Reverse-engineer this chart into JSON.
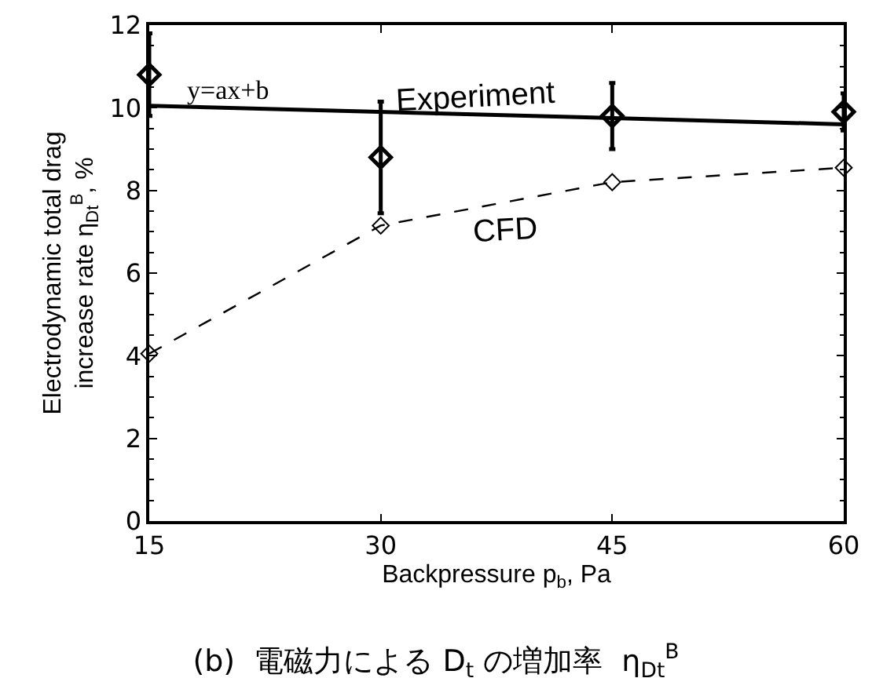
{
  "chart_data": {
    "type": "scatter",
    "title": "(b)  電磁力による D$_{t}$ の増加率  η$_{Dt}$$^{B}$",
    "xlabel": "Backpressure p$_{b}$, Pa",
    "ylabel": "Electrodynamic total drag\nincrease rate η$_{Dt}$$^{B}$, %",
    "x": [
      15,
      30,
      45,
      60
    ],
    "series": [
      {
        "type": "scatter",
        "color": "#000000",
        "marker": "diamond",
        "values": [
          10.8,
          8.8,
          9.8,
          9.9
        ],
        "errors": [
          1.0,
          1.35,
          0.8,
          0.45
        ]
      },
      {
        "type": "line",
        "color": "#000000",
        "marker": "none",
        "line_style": "solid",
        "x": [
          15,
          60
        ],
        "values": [
          10.05,
          9.6
        ]
      },
      {
        "type": "line",
        "color": "#000000",
        "marker": "diamond",
        "line_style": "dashed",
        "values": [
          4.05,
          7.15,
          8.2,
          8.55
        ]
      }
    ],
    "annotations": [
      "y=ax+b",
      "Experiment",
      "CFD"
    ],
    "xlim": [
      15,
      60
    ],
    "xticks": [
      15,
      30,
      45,
      60
    ],
    "ylim": [
      0,
      12
    ],
    "yticks": [
      0,
      2,
      4,
      6,
      8,
      10,
      12
    ],
    "grid": false
  }
}
